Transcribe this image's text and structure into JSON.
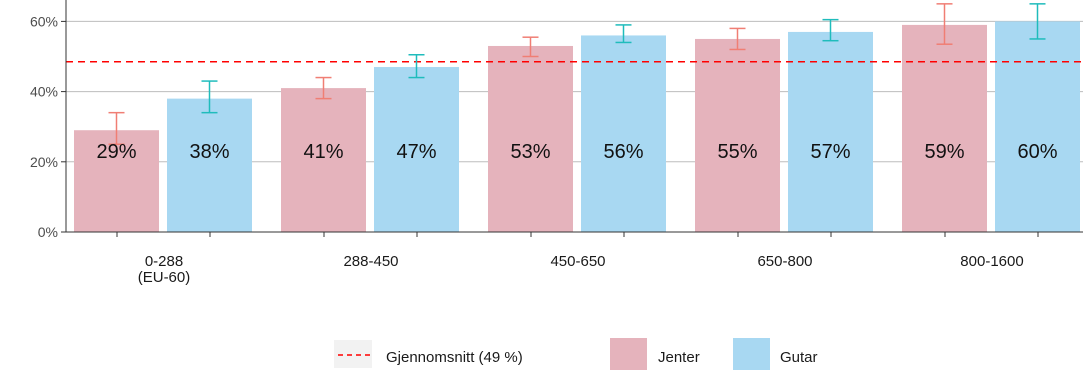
{
  "chart_data": {
    "type": "bar",
    "categories": [
      "0-288\n(EU-60)",
      "288-450",
      "450-650",
      "650-800",
      "800-1600"
    ],
    "series": [
      {
        "name": "Jenter",
        "color": "#e5b3bc",
        "error_color": "#f07e74",
        "values": [
          29,
          41,
          53,
          55,
          59
        ],
        "labels": [
          "29%",
          "41%",
          "53%",
          "55%",
          "59%"
        ],
        "error_low": [
          25,
          38,
          50,
          52,
          53.5
        ],
        "error_high": [
          34,
          44,
          55.5,
          58,
          65
        ]
      },
      {
        "name": "Gutar",
        "color": "#a8d8f2",
        "error_color": "#1fbcbc",
        "values": [
          38,
          47,
          56,
          57,
          60
        ],
        "labels": [
          "38%",
          "47%",
          "56%",
          "57%",
          "60%"
        ],
        "error_low": [
          34,
          44,
          54,
          54.5,
          55
        ],
        "error_high": [
          43,
          50.5,
          59,
          60.5,
          65
        ]
      }
    ],
    "reference_line": {
      "label": "Gjennomsnitt (49 %)",
      "value": 48.5,
      "color": "#ff0000",
      "style": "dashed"
    },
    "y_ticks": [
      "0%",
      "20%",
      "40%",
      "60%"
    ],
    "ylim": [
      0,
      66
    ],
    "grid": true,
    "legend_position": "bottom",
    "xlabel": "",
    "ylabel": "",
    "title": ""
  }
}
